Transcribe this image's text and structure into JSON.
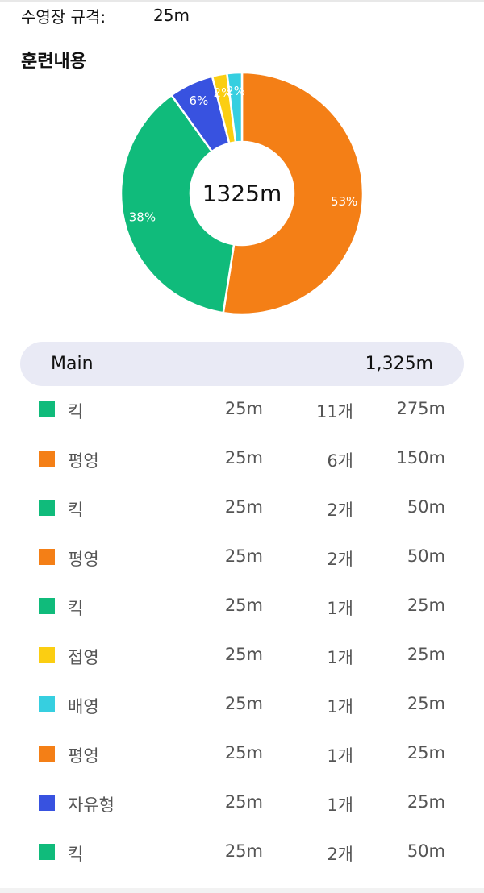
{
  "pool": {
    "label": "수영장 규격:",
    "value": "25m"
  },
  "section_title": "훈련내용",
  "chart_data": {
    "type": "pie",
    "center_label": "1325m",
    "slices": [
      {
        "value": 53,
        "label": "53%",
        "color": "#f47f16"
      },
      {
        "value": 38,
        "label": "38%",
        "color": "#10bb7b"
      },
      {
        "value": 6,
        "label": "6%",
        "color": "#3852e0"
      },
      {
        "value": 2,
        "label": "2%",
        "color": "#fbce12"
      },
      {
        "value": 2,
        "label": "2%",
        "color": "#36cfe0"
      }
    ]
  },
  "total": {
    "name": "Main",
    "value": "1,325m"
  },
  "items": [
    {
      "name": "킥",
      "distance": "25m",
      "count": "11개",
      "total": "275m",
      "color": "#10bb7b"
    },
    {
      "name": "평영",
      "distance": "25m",
      "count": "6개",
      "total": "150m",
      "color": "#f47f16"
    },
    {
      "name": "킥",
      "distance": "25m",
      "count": "2개",
      "total": "50m",
      "color": "#10bb7b"
    },
    {
      "name": "평영",
      "distance": "25m",
      "count": "2개",
      "total": "50m",
      "color": "#f47f16"
    },
    {
      "name": "킥",
      "distance": "25m",
      "count": "1개",
      "total": "25m",
      "color": "#10bb7b"
    },
    {
      "name": "접영",
      "distance": "25m",
      "count": "1개",
      "total": "25m",
      "color": "#fbce12"
    },
    {
      "name": "배영",
      "distance": "25m",
      "count": "1개",
      "total": "25m",
      "color": "#36cfe0"
    },
    {
      "name": "평영",
      "distance": "25m",
      "count": "1개",
      "total": "25m",
      "color": "#f47f16"
    },
    {
      "name": "자유형",
      "distance": "25m",
      "count": "1개",
      "total": "25m",
      "color": "#3852e0"
    },
    {
      "name": "킥",
      "distance": "25m",
      "count": "2개",
      "total": "50m",
      "color": "#10bb7b"
    }
  ]
}
